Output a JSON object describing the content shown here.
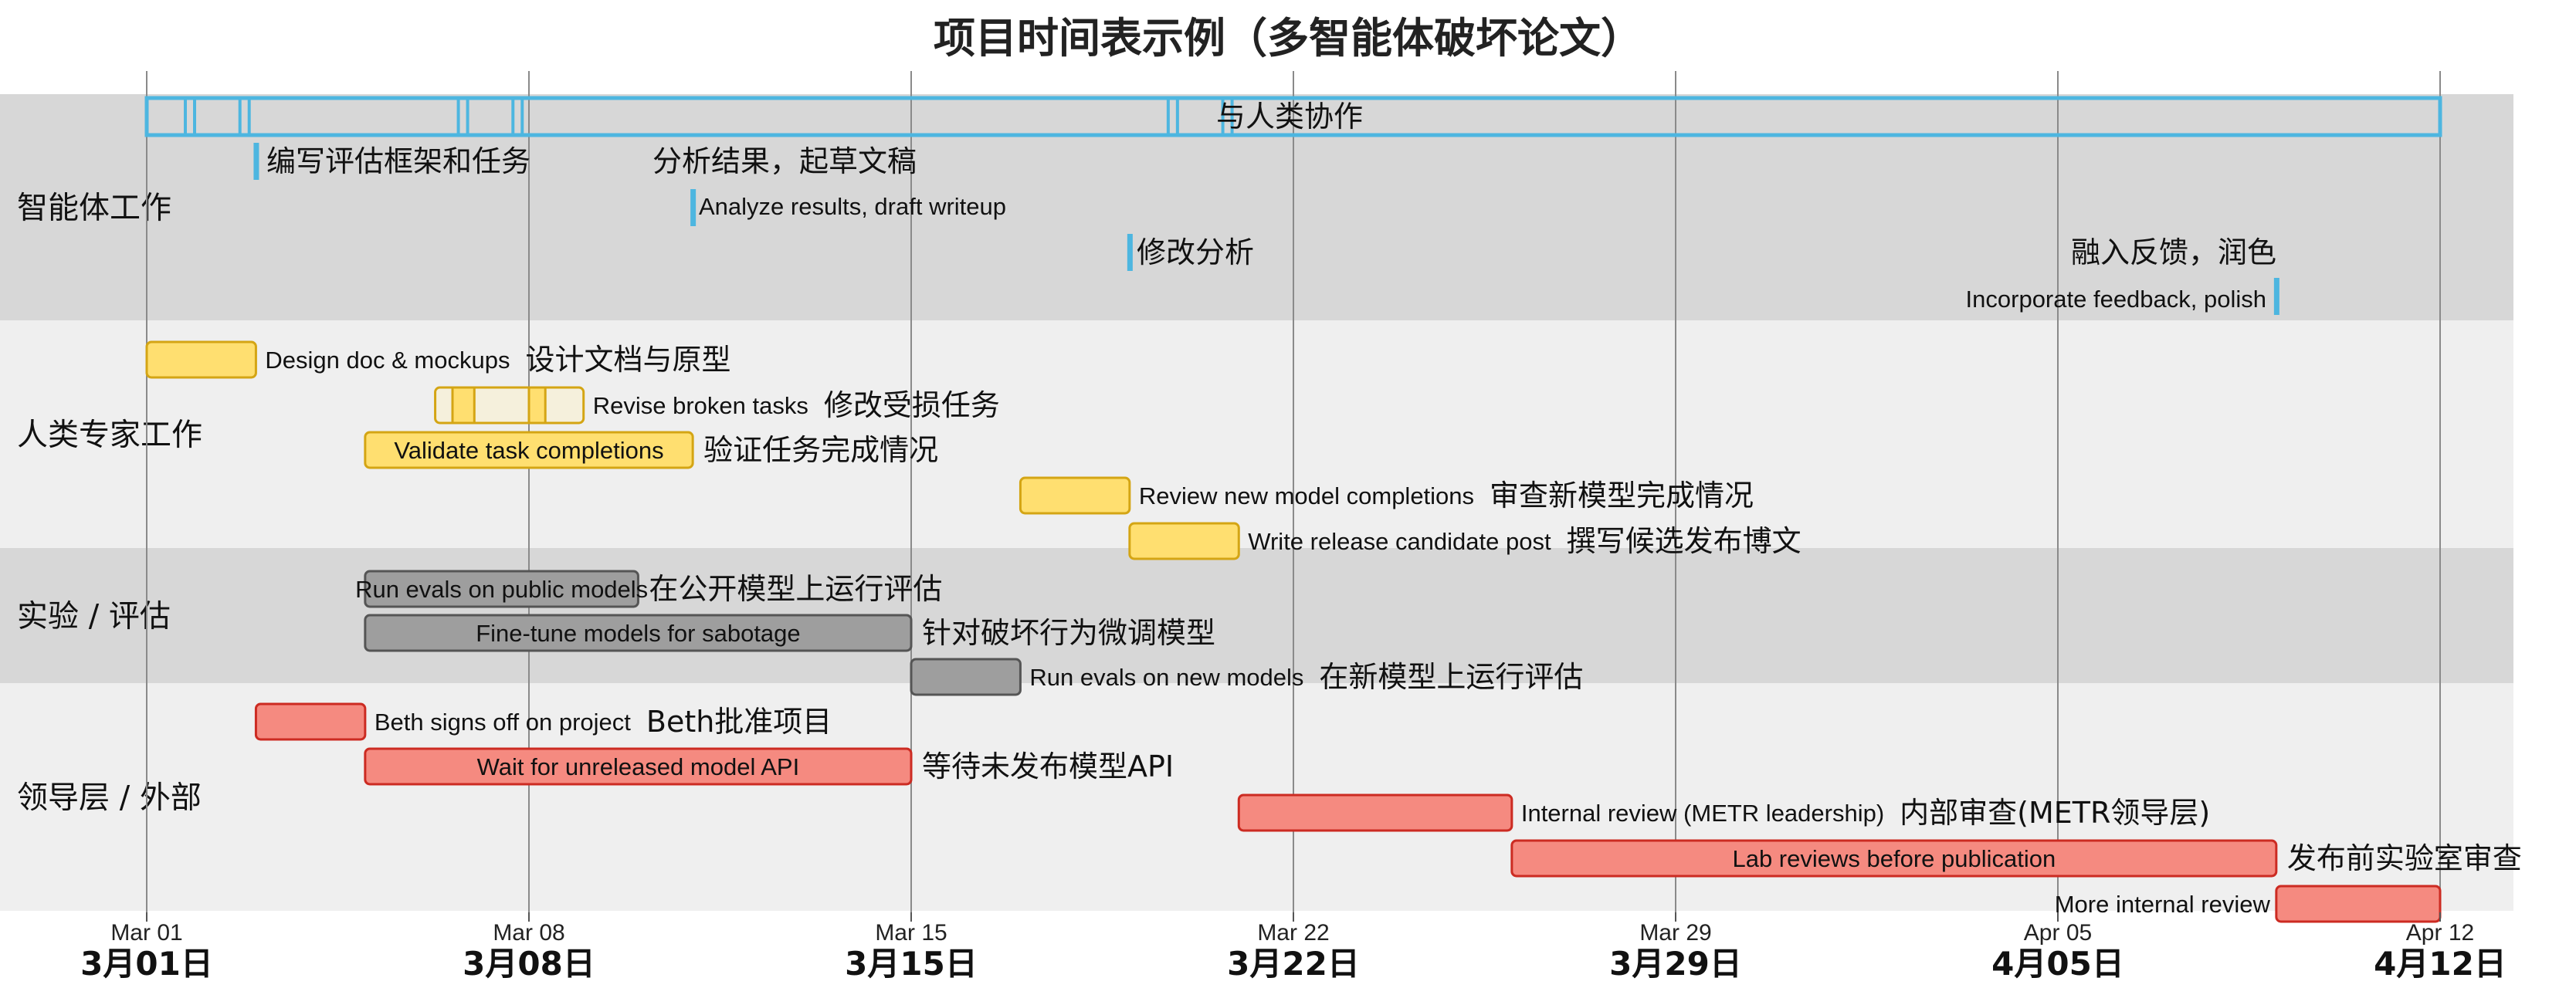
{
  "chart_data": {
    "type": "gantt",
    "title": "项目时间表示例（多智能体破坏论文）",
    "x_range": [
      "2024-03-01",
      "2024-04-12"
    ],
    "ticks": [
      {
        "date": "2024-03-01",
        "label_en": "Mar 01",
        "label_zh": "3月01日"
      },
      {
        "date": "2024-03-08",
        "label_en": "Mar 08",
        "label_zh": "3月08日"
      },
      {
        "date": "2024-03-15",
        "label_en": "Mar 15",
        "label_zh": "3月15日"
      },
      {
        "date": "2024-03-22",
        "label_en": "Mar 22",
        "label_zh": "3月22日"
      },
      {
        "date": "2024-03-29",
        "label_en": "Mar 29",
        "label_zh": "3月29日"
      },
      {
        "date": "2024-04-05",
        "label_en": "Apr 05",
        "label_zh": "4月05日"
      },
      {
        "date": "2024-04-12",
        "label_en": "Apr 12",
        "label_zh": "4月12日"
      }
    ],
    "lanes": [
      {
        "label": "智能体工作",
        "shade": "#d7d7d7"
      },
      {
        "label": "人类专家工作",
        "shade": "#efefef"
      },
      {
        "label": "实验 / 评估",
        "shade": "#d7d7d7"
      },
      {
        "label": "领导层 / 外部",
        "shade": "#efefef"
      }
    ],
    "colors": {
      "agent": "#4db6e0",
      "human_fill": "#ffdf70",
      "human_edge": "#d4a514",
      "exp_fill": "#9e9e9e",
      "exp_edge": "#555555",
      "lead_fill": "#f58a80",
      "lead_edge": "#cc2b22"
    },
    "agent_span": {
      "start": "2024-03-01",
      "end": "2024-04-12",
      "label_zh": "与人类协作",
      "dividers": [
        "2024-03-01",
        "2024-03-02",
        "2024-03-06",
        "2024-03-07",
        "2024-03-19",
        "2024-03-20"
      ]
    },
    "agent_markers": [
      {
        "date": "2024-03-03",
        "label_en": "",
        "label_zh": "编写评估框架和任务"
      },
      {
        "date": "2024-03-11",
        "label_en": "Analyze results, draft writeup",
        "label_zh": "分析结果，起草文稿"
      },
      {
        "date": "2024-03-19",
        "label_en": "",
        "label_zh": "修改分析"
      },
      {
        "date": "2024-04-09",
        "label_en": "Incorporate feedback, polish",
        "label_zh": "融入反馈，润色"
      }
    ],
    "tasks": [
      {
        "lane": 1,
        "cat": "human",
        "start": "2024-03-01",
        "end": "2024-03-03",
        "label_en": "Design doc & mockups",
        "label_zh": "设计文档与原型",
        "inside": false
      },
      {
        "lane": 1,
        "cat": "human-outline",
        "start": "2024-03-06",
        "end": "2024-03-09",
        "label_en": "Revise broken tasks",
        "label_zh": "修改受损任务",
        "inside": false,
        "segments": [
          [
            "2024-03-06.6",
            "2024-03-07"
          ],
          [
            "2024-03-08",
            "2024-03-08.3"
          ]
        ]
      },
      {
        "lane": 1,
        "cat": "human",
        "start": "2024-03-05",
        "end": "2024-03-11",
        "label_en": "Validate task completions",
        "label_zh": "验证任务完成情况",
        "inside": true
      },
      {
        "lane": 1,
        "cat": "human",
        "start": "2024-03-17",
        "end": "2024-03-19",
        "label_en": "Review new model completions",
        "label_zh": "审查新模型完成情况",
        "inside": false
      },
      {
        "lane": 1,
        "cat": "human",
        "start": "2024-03-19",
        "end": "2024-03-21",
        "label_en": "Write release candidate post",
        "label_zh": "撰写候选发布博文",
        "inside": false
      },
      {
        "lane": 2,
        "cat": "exp",
        "start": "2024-03-05",
        "end": "2024-03-10",
        "label_en": "Run evals on public models",
        "label_zh": "在公开模型上运行评估",
        "inside": true
      },
      {
        "lane": 2,
        "cat": "exp",
        "start": "2024-03-05",
        "end": "2024-03-15",
        "label_en": "Fine-tune models for sabotage",
        "label_zh": "针对破坏行为微调模型",
        "inside": true
      },
      {
        "lane": 2,
        "cat": "exp",
        "start": "2024-03-15",
        "end": "2024-03-17",
        "label_en": "Run evals on new models",
        "label_zh": "在新模型上运行评估",
        "inside": false
      },
      {
        "lane": 3,
        "cat": "lead",
        "start": "2024-03-03",
        "end": "2024-03-05",
        "label_en": "Beth signs off on project",
        "label_zh": "Beth批准项目",
        "inside": false
      },
      {
        "lane": 3,
        "cat": "lead",
        "start": "2024-03-05",
        "end": "2024-03-15",
        "label_en": "Wait for unreleased model API",
        "label_zh": "等待未发布模型API",
        "inside": true
      },
      {
        "lane": 3,
        "cat": "lead",
        "start": "2024-03-21",
        "end": "2024-03-26",
        "label_en": "Internal review (METR leadership)",
        "label_zh": "内部审查(METR领导层)",
        "inside": false
      },
      {
        "lane": 3,
        "cat": "lead",
        "start": "2024-03-26",
        "end": "2024-04-09",
        "label_en": "Lab reviews before publication",
        "label_zh": "发布前实验室审查",
        "inside": true
      },
      {
        "lane": 3,
        "cat": "lead",
        "start": "2024-04-09",
        "end": "2024-04-12",
        "label_en": "More internal review",
        "label_zh": "",
        "inside": "left"
      }
    ]
  }
}
